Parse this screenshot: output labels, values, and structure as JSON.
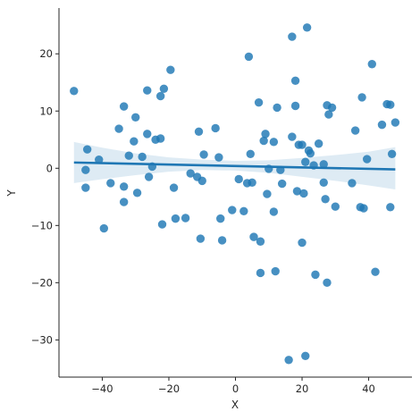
{
  "chart_data": {
    "type": "scatter",
    "title": "",
    "xlabel": "X",
    "ylabel": "Y",
    "xlim": [
      -53,
      53
    ],
    "ylim": [
      -36.5,
      28
    ],
    "xticks": [
      -40,
      -20,
      0,
      20,
      40
    ],
    "yticks": [
      -30,
      -20,
      -10,
      0,
      10,
      20
    ],
    "xtick_labels": [
      "−40",
      "−20",
      "0",
      "20",
      "40"
    ],
    "ytick_labels": [
      "−30",
      "−20",
      "−10",
      "0",
      "10",
      "20"
    ],
    "grid": false,
    "point_color": "#1f77b4",
    "regression": {
      "x": [
        -48.5,
        48
      ],
      "y": [
        1.0,
        -0.2
      ]
    },
    "confidence_band": {
      "x": [
        -48.5,
        -40,
        -30,
        -20,
        -10,
        0,
        10,
        20,
        30,
        40,
        48
      ],
      "lower": [
        -2.6,
        -1.9,
        -1.2,
        -0.6,
        -0.3,
        -0.4,
        -0.8,
        -1.5,
        -2.2,
        -3.0,
        -3.7
      ],
      "upper": [
        4.6,
        3.6,
        2.6,
        1.9,
        1.5,
        1.3,
        1.4,
        1.8,
        2.3,
        2.9,
        3.7
      ]
    },
    "points": [
      [
        -48.5,
        13.5
      ],
      [
        -45,
        -0.3
      ],
      [
        -45,
        -3.4
      ],
      [
        -44.5,
        3.3
      ],
      [
        -41,
        1.5
      ],
      [
        -39.5,
        -10.5
      ],
      [
        -37.5,
        -2.6
      ],
      [
        -35,
        6.9
      ],
      [
        -33.5,
        -5.9
      ],
      [
        -33.5,
        -3.2
      ],
      [
        -33.5,
        10.8
      ],
      [
        -32,
        2.2
      ],
      [
        -30.5,
        4.7
      ],
      [
        -30,
        8.9
      ],
      [
        -29.5,
        -4.3
      ],
      [
        -28,
        2.0
      ],
      [
        -26.5,
        13.6
      ],
      [
        -26.5,
        6.0
      ],
      [
        -26,
        -1.5
      ],
      [
        -25,
        0.3
      ],
      [
        -24,
        5.0
      ],
      [
        -22.5,
        5.2
      ],
      [
        -22.5,
        12.6
      ],
      [
        -22,
        -9.8
      ],
      [
        -21.5,
        13.9
      ],
      [
        -19.5,
        17.2
      ],
      [
        -18.5,
        -3.4
      ],
      [
        -18,
        -8.8
      ],
      [
        -15,
        -8.7
      ],
      [
        -13.5,
        -0.9
      ],
      [
        -11.5,
        -1.5
      ],
      [
        -11,
        6.4
      ],
      [
        -10.5,
        -12.3
      ],
      [
        -10,
        -2.2
      ],
      [
        -9.5,
        2.4
      ],
      [
        -6,
        7.0
      ],
      [
        -5,
        1.9
      ],
      [
        -4.5,
        -8.8
      ],
      [
        -4,
        -12.6
      ],
      [
        -1,
        -7.3
      ],
      [
        1,
        -1.9
      ],
      [
        2.5,
        -7.5
      ],
      [
        3.5,
        -2.6
      ],
      [
        4,
        19.5
      ],
      [
        4.5,
        2.5
      ],
      [
        5,
        -2.5
      ],
      [
        5.5,
        -12.0
      ],
      [
        7,
        11.5
      ],
      [
        7.5,
        -18.3
      ],
      [
        7.5,
        -12.8
      ],
      [
        8.5,
        4.8
      ],
      [
        9,
        6.0
      ],
      [
        9.5,
        -4.5
      ],
      [
        10,
        -0.1
      ],
      [
        11.5,
        -7.6
      ],
      [
        11.5,
        4.6
      ],
      [
        12,
        -18.0
      ],
      [
        12.5,
        10.6
      ],
      [
        13.5,
        -0.3
      ],
      [
        14,
        -2.7
      ],
      [
        16,
        -33.5
      ],
      [
        17,
        23.0
      ],
      [
        17,
        5.5
      ],
      [
        18,
        15.3
      ],
      [
        18,
        10.9
      ],
      [
        18.5,
        -4.0
      ],
      [
        19,
        4.1
      ],
      [
        20,
        -13.0
      ],
      [
        20,
        4.1
      ],
      [
        20.5,
        -4.4
      ],
      [
        21,
        1.1
      ],
      [
        21,
        -32.8
      ],
      [
        21.5,
        24.6
      ],
      [
        22,
        3.1
      ],
      [
        22.5,
        2.6
      ],
      [
        23.5,
        0.5
      ],
      [
        24,
        -18.6
      ],
      [
        25,
        4.3
      ],
      [
        26.5,
        0.7
      ],
      [
        26.5,
        -2.5
      ],
      [
        27,
        -5.4
      ],
      [
        27.5,
        11.0
      ],
      [
        27.5,
        -20.0
      ],
      [
        28,
        9.4
      ],
      [
        29,
        10.6
      ],
      [
        30,
        -6.7
      ],
      [
        35,
        -2.6
      ],
      [
        36,
        6.6
      ],
      [
        37.5,
        -6.8
      ],
      [
        38,
        12.4
      ],
      [
        38.5,
        -7.0
      ],
      [
        39.5,
        1.6
      ],
      [
        41,
        18.2
      ],
      [
        42,
        -18.1
      ],
      [
        44,
        7.6
      ],
      [
        45.5,
        11.2
      ],
      [
        46.5,
        11.1
      ],
      [
        46.5,
        -6.8
      ],
      [
        47,
        2.5
      ],
      [
        48,
        8.0
      ]
    ]
  }
}
